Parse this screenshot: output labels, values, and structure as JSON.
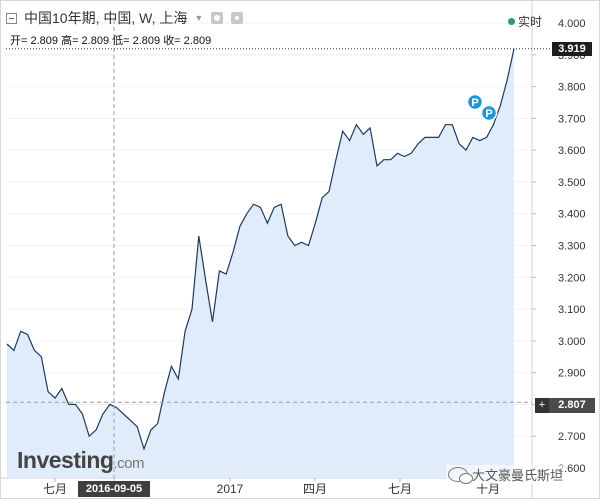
{
  "legend": {
    "symbol": "中国10年期, 中国, W, 上海",
    "ohlc": "开= 2.809 高= 2.809 低= 2.809 收= 2.809"
  },
  "realtime_label": "实时",
  "logo": {
    "main": "Investing",
    "suffix": ".com"
  },
  "watermark": "大文豪曼氏斯坦",
  "last_price": "3.919",
  "crosshair": {
    "value": "2.807",
    "date": "2016-09-05",
    "plus": "+"
  },
  "markers": [
    "P",
    "P"
  ],
  "colors": {
    "line": "#1f3a5c",
    "fill": "#dbe9f8",
    "badge": "#1e1e1e",
    "marker": "#2196d3",
    "realtime_dot": "#2e9d5b"
  },
  "chart_data": {
    "type": "area",
    "title": "",
    "xlabel": "",
    "ylabel": "",
    "ylim": [
      2.6,
      4.03
    ],
    "grid": true,
    "y_ticks": [
      "4.000",
      "3.900",
      "3.800",
      "3.700",
      "3.600",
      "3.500",
      "3.400",
      "3.300",
      "3.200",
      "3.100",
      "3.000",
      "2.900",
      "2.800",
      "2.700",
      "2.600"
    ],
    "x_ticks": [
      "七月",
      "2016-09-05",
      "2017",
      "四月",
      "七月",
      "十月"
    ],
    "series": [
      {
        "values": [
          2.99,
          2.97,
          3.03,
          3.02,
          2.97,
          2.95,
          2.84,
          2.82,
          2.85,
          2.8,
          2.8,
          2.77,
          2.7,
          2.72,
          2.77,
          2.8,
          2.79,
          2.77,
          2.75,
          2.73,
          2.66,
          2.72,
          2.74,
          2.84,
          2.92,
          2.88,
          3.03,
          3.1,
          3.33,
          3.19,
          3.06,
          3.22,
          3.21,
          3.28,
          3.36,
          3.4,
          3.43,
          3.42,
          3.37,
          3.42,
          3.43,
          3.33,
          3.3,
          3.31,
          3.3,
          3.37,
          3.45,
          3.47,
          3.57,
          3.66,
          3.63,
          3.68,
          3.65,
          3.67,
          3.55,
          3.57,
          3.57,
          3.59,
          3.58,
          3.59,
          3.62,
          3.64,
          3.64,
          3.64,
          3.68,
          3.68,
          3.62,
          3.6,
          3.64,
          3.63,
          3.64,
          3.68,
          3.74,
          3.82,
          3.919
        ]
      }
    ]
  }
}
